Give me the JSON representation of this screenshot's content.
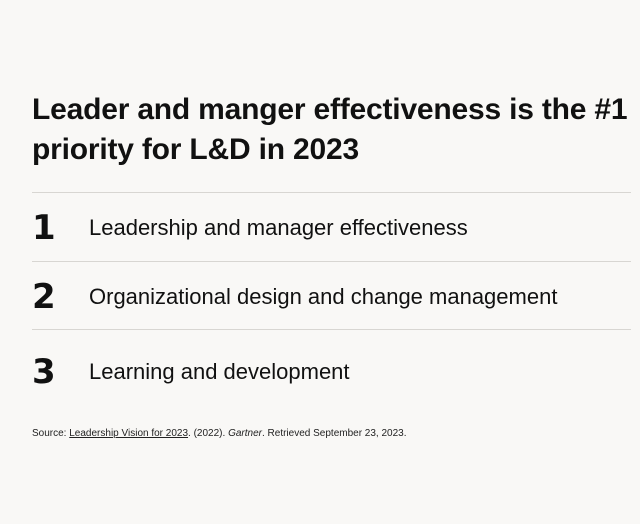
{
  "headline": "Leader and manger effectiveness is the #1 priority for L&D in 2023",
  "priorities": [
    {
      "rank": "1",
      "label": "Leadership and manager effectiveness"
    },
    {
      "rank": "2",
      "label": "Organizational design and change management"
    },
    {
      "rank": "3",
      "label": "Learning and development"
    }
  ],
  "source": {
    "prefix": "Source: ",
    "link_text": "Leadership Vision for 2023",
    "year_text": ". (2022). ",
    "publisher": "Gartner",
    "suffix": ". Retrieved September 23, 2023."
  }
}
